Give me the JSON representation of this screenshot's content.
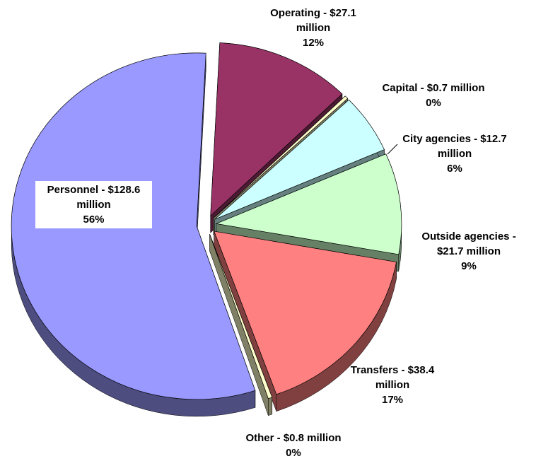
{
  "chart_data": {
    "type": "pie",
    "categories": [
      "Operating - $27.1 million",
      "Capital - $0.7 million",
      "City agencies - $12.7 million",
      "Outside agencies - $21.7 million",
      "Transfers - $38.4 million",
      "Other - $0.8 million",
      "Personnel - $128.6 million"
    ],
    "values": [
      27.1,
      0.7,
      12.7,
      21.7,
      38.4,
      0.8,
      128.6
    ],
    "percent_labels": [
      "12%",
      "0%",
      "6%",
      "9%",
      "17%",
      "0%",
      "56%"
    ],
    "colors": [
      "#993366",
      "#ffffcc",
      "#ccffff",
      "#ccffcc",
      "#ff8080",
      "#ffffcc",
      "#9999ff"
    ]
  }
}
